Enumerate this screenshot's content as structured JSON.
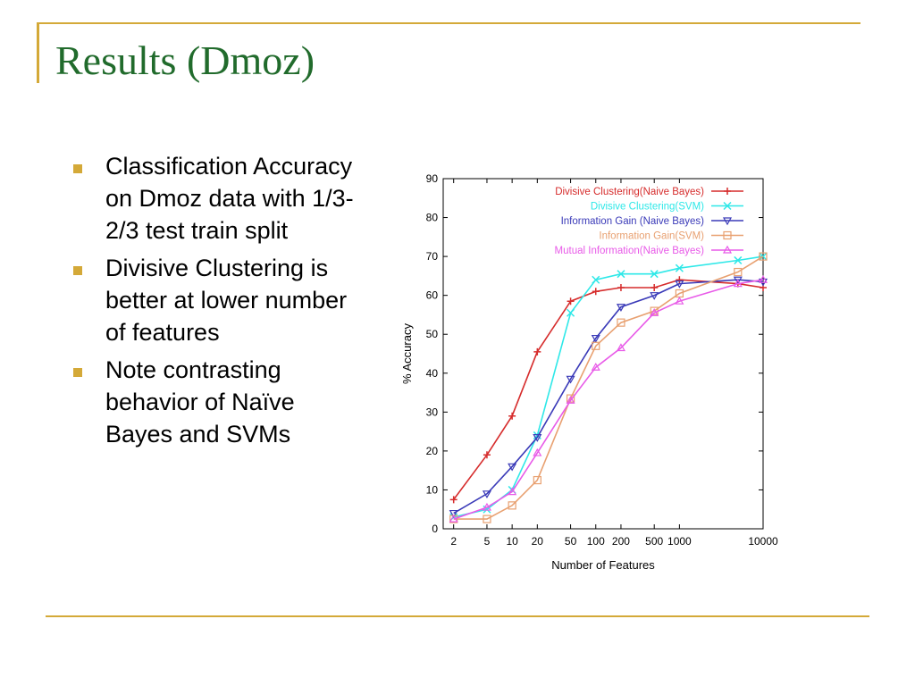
{
  "slide": {
    "title": "Results (Dmoz)",
    "bullets": [
      "Classification Accuracy on Dmoz data with 1/3-2/3 test train split",
      "Divisive Clustering is better at lower number of features",
      "Note contrasting behavior of Naïve Bayes and SVMs"
    ]
  },
  "colors": {
    "accent": "#d4a938",
    "title": "#216b2c"
  },
  "chart_data": {
    "type": "line",
    "xlabel": "Number of Features",
    "ylabel": "% Accuracy",
    "ylim": [
      0,
      90
    ],
    "yticks": [
      0,
      10,
      20,
      30,
      40,
      50,
      60,
      70,
      80,
      90
    ],
    "x_scale": "log",
    "xlim": [
      1.5,
      10000
    ],
    "xticks": [
      2,
      5,
      10,
      20,
      50,
      100,
      200,
      500,
      1000,
      10000
    ],
    "xtick_labels": [
      "2",
      "5",
      "10",
      "20",
      "50",
      "100",
      "200",
      "500",
      "1000",
      "10000"
    ],
    "grid": false,
    "legend_position": "top-right",
    "x": [
      2,
      5,
      10,
      20,
      50,
      100,
      200,
      500,
      1000,
      5000,
      10000
    ],
    "series": [
      {
        "name": "Divisive Clustering(Naive Bayes)",
        "color": "#d62c2c",
        "marker": "plus",
        "values": [
          7.5,
          19,
          29,
          45.5,
          58.5,
          61,
          62,
          62,
          64,
          63,
          62
        ]
      },
      {
        "name": "Divisive Clustering(SVM)",
        "color": "#2ee8e8",
        "marker": "x",
        "values": [
          3,
          5,
          10,
          24,
          55.5,
          64,
          65.5,
          65.5,
          67,
          69,
          70
        ]
      },
      {
        "name": "Information Gain (Naive Bayes)",
        "color": "#3a3ab8",
        "marker": "tri-down",
        "values": [
          4,
          9,
          16,
          23.5,
          38.5,
          49,
          57,
          60,
          63,
          64,
          63.5
        ]
      },
      {
        "name": "Information Gain(SVM)",
        "color": "#e8a070",
        "marker": "square",
        "values": [
          2.5,
          2.5,
          6,
          12.5,
          33.5,
          47,
          53,
          56,
          60.5,
          66,
          70
        ]
      },
      {
        "name": "Mutual Information(Naive Bayes)",
        "color": "#e85ae8",
        "marker": "tri-up",
        "values": [
          2.5,
          5.5,
          9.5,
          19.5,
          33,
          41.5,
          46.5,
          55.5,
          58.5,
          63,
          64
        ]
      }
    ]
  }
}
